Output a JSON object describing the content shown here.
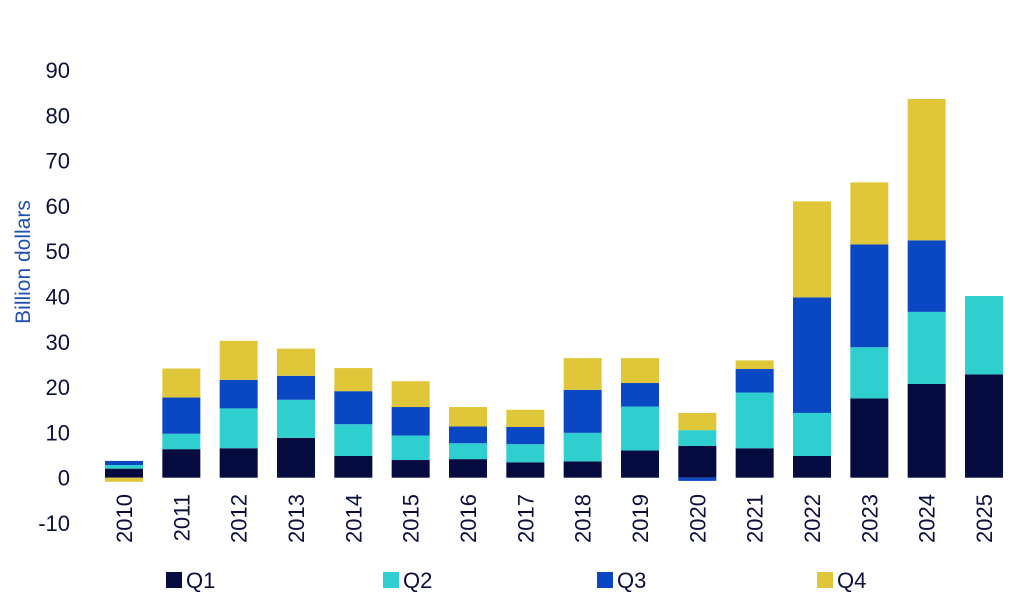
{
  "chart_data": {
    "type": "bar",
    "stacked": true,
    "title": "",
    "xlabel": "",
    "ylabel": "Billion dollars",
    "ylim": [
      -10,
      90
    ],
    "yticks": [
      -10,
      0,
      10,
      20,
      30,
      40,
      50,
      60,
      70,
      80,
      90
    ],
    "grid": false,
    "legend_position": "bottom",
    "categories": [
      "2010",
      "2011",
      "2012",
      "2013",
      "2014",
      "2015",
      "2016",
      "2017",
      "2018",
      "2019",
      "2020",
      "2021",
      "2022",
      "2023",
      "2024",
      "2025"
    ],
    "series": [
      {
        "name": "Q1",
        "color": "#050a3f",
        "values": [
          2.0,
          6.3,
          6.5,
          8.8,
          4.8,
          3.9,
          4.1,
          3.4,
          3.6,
          6.0,
          7.0,
          6.5,
          4.8,
          17.5,
          20.7,
          22.8
        ]
      },
      {
        "name": "Q2",
        "color": "#2fcfd0",
        "values": [
          0.8,
          3.4,
          8.8,
          8.4,
          7.0,
          5.4,
          3.5,
          4.0,
          6.3,
          9.7,
          3.5,
          12.3,
          9.5,
          11.3,
          15.9,
          17.3
        ]
      },
      {
        "name": "Q3",
        "color": "#0a47c2",
        "values": [
          0.9,
          8.0,
          6.3,
          5.3,
          7.3,
          6.3,
          3.7,
          3.8,
          9.5,
          5.2,
          -0.7,
          5.2,
          25.5,
          22.7,
          15.8,
          0
        ]
      },
      {
        "name": "Q4",
        "color": "#e0c73a",
        "values": [
          -0.9,
          6.4,
          8.6,
          6.0,
          5.1,
          5.7,
          4.3,
          3.8,
          7.0,
          5.5,
          3.8,
          1.9,
          21.2,
          13.7,
          31.2,
          0
        ]
      }
    ]
  }
}
